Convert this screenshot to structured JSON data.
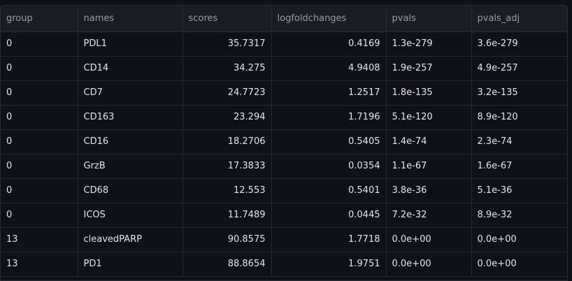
{
  "table": {
    "columns": [
      "group",
      "names",
      "scores",
      "logfoldchanges",
      "pvals",
      "pvals_adj"
    ],
    "rows": [
      [
        "0",
        "PDL1",
        "35.7317",
        "0.4169",
        "1.3e-279",
        "3.6e-279"
      ],
      [
        "0",
        "CD14",
        "34.275",
        "4.9408",
        "1.9e-257",
        "4.9e-257"
      ],
      [
        "0",
        "CD7",
        "24.7723",
        "1.2517",
        "1.8e-135",
        "3.2e-135"
      ],
      [
        "0",
        "CD163",
        "23.294",
        "1.7196",
        "5.1e-120",
        "8.9e-120"
      ],
      [
        "0",
        "CD16",
        "18.2706",
        "0.5405",
        "1.4e-74",
        "2.3e-74"
      ],
      [
        "0",
        "GrzB",
        "17.3833",
        "0.0354",
        "1.1e-67",
        "1.6e-67"
      ],
      [
        "0",
        "CD68",
        "12.553",
        "0.5401",
        "3.8e-36",
        "5.1e-36"
      ],
      [
        "0",
        "ICOS",
        "11.7489",
        "0.0445",
        "7.2e-32",
        "8.9e-32"
      ],
      [
        "13",
        "cleavedPARP",
        "90.8575",
        "1.7718",
        "0.0e+00",
        "0.0e+00"
      ],
      [
        "13",
        "PD1",
        "88.8654",
        "1.9751",
        "0.0e+00",
        "0.0e+00"
      ]
    ]
  }
}
